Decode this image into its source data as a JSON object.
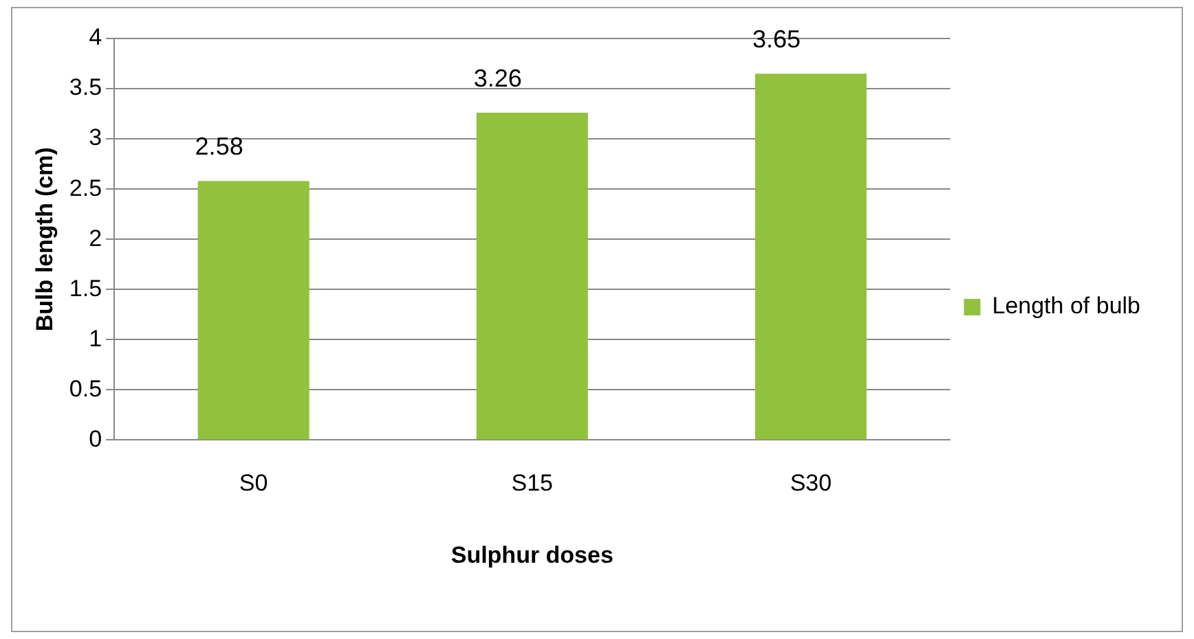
{
  "chart_data": {
    "type": "bar",
    "xlabel": "Sulphur doses",
    "ylabel": "Bulb length (cm)",
    "categories": [
      "S0",
      "S15",
      "S30"
    ],
    "series": [
      {
        "name": "Length of bulb",
        "color": "#92c13e",
        "values": [
          2.58,
          3.26,
          3.65
        ]
      }
    ],
    "ylim": [
      0,
      4
    ],
    "yticks": [
      0,
      0.5,
      1,
      1.5,
      2,
      2.5,
      3,
      3.5,
      4
    ],
    "grid": "y",
    "legend": "right",
    "data_labels": true
  }
}
